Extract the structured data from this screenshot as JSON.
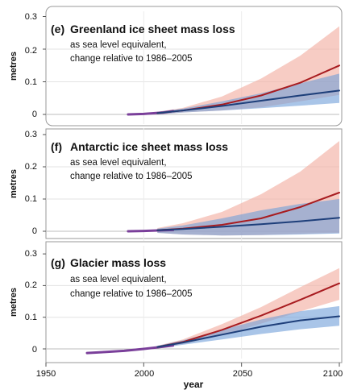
{
  "chart_data": [
    {
      "type": "line",
      "letter": "(e)",
      "title": "Greenland ice sheet mass loss",
      "subtitle_line1": "as sea level equivalent,",
      "subtitle_line2": "change relative to 1986–2005",
      "ylabel": "metres",
      "ylim": [
        -0.02,
        0.3
      ],
      "yticks": [
        "0.3",
        "0.2",
        "0.1",
        "0"
      ],
      "xlim": [
        1950,
        2100
      ],
      "grid": true,
      "series": [
        {
          "key": "historical",
          "color": "#7a3f9a",
          "x": [
            1992,
            2000,
            2010,
            2015
          ],
          "y": [
            0.0,
            0.0015,
            0.006,
            0.01
          ]
        },
        {
          "key": "high",
          "color": "#a81c20",
          "band_color": "#f3b1a4",
          "x": [
            2007,
            2020,
            2040,
            2060,
            2080,
            2100
          ],
          "y": [
            0.004,
            0.012,
            0.03,
            0.058,
            0.097,
            0.15
          ],
          "lower": [
            0.0,
            0.006,
            0.012,
            0.022,
            0.04,
            0.06
          ],
          "upper": [
            0.008,
            0.02,
            0.055,
            0.11,
            0.18,
            0.27
          ]
        },
        {
          "key": "low",
          "color": "#1e3f7a",
          "band_color": "#6f9fd8",
          "x": [
            2007,
            2020,
            2040,
            2060,
            2080,
            2100
          ],
          "y": [
            0.004,
            0.012,
            0.026,
            0.042,
            0.058,
            0.073
          ],
          "lower": [
            0.0,
            0.006,
            0.012,
            0.019,
            0.027,
            0.035
          ],
          "upper": [
            0.008,
            0.018,
            0.04,
            0.065,
            0.095,
            0.125
          ]
        }
      ]
    },
    {
      "type": "line",
      "letter": "(f)",
      "title": "Antarctic ice sheet mass loss",
      "subtitle_line1": "as sea level equivalent,",
      "subtitle_line2": "change relative to 1986–2005",
      "ylabel": "metres",
      "ylim": [
        -0.02,
        0.3
      ],
      "yticks": [
        "0.3",
        "0.2",
        "0.1",
        "0"
      ],
      "xlim": [
        1950,
        2100
      ],
      "grid": true,
      "series": [
        {
          "key": "historical",
          "color": "#7a3f9a",
          "x": [
            1992,
            2000,
            2010,
            2015
          ],
          "y": [
            0.0,
            0.001,
            0.003,
            0.004
          ]
        },
        {
          "key": "high",
          "color": "#a81c20",
          "band_color": "#f3b1a4",
          "x": [
            2007,
            2020,
            2040,
            2060,
            2080,
            2100
          ],
          "y": [
            0.003,
            0.008,
            0.02,
            0.04,
            0.075,
            0.12
          ],
          "lower": [
            -0.005,
            -0.01,
            -0.013,
            -0.012,
            -0.008,
            -0.005
          ],
          "upper": [
            0.01,
            0.025,
            0.06,
            0.115,
            0.185,
            0.28
          ]
        },
        {
          "key": "low",
          "color": "#1e3f7a",
          "band_color": "#6f9fd8",
          "x": [
            2007,
            2020,
            2040,
            2060,
            2080,
            2100
          ],
          "y": [
            0.003,
            0.007,
            0.014,
            0.022,
            0.031,
            0.042
          ],
          "lower": [
            -0.005,
            -0.01,
            -0.013,
            -0.012,
            -0.01,
            -0.007
          ],
          "upper": [
            0.008,
            0.018,
            0.04,
            0.065,
            0.085,
            0.1
          ]
        }
      ]
    },
    {
      "type": "line",
      "letter": "(g)",
      "title": "Glacier mass loss",
      "subtitle_line1": "as sea level equivalent,",
      "subtitle_line2": "change relative to 1986–2005",
      "ylabel": "metres",
      "ylim": [
        -0.02,
        0.3
      ],
      "yticks": [
        "0.3",
        "0.2",
        "0.1",
        "0"
      ],
      "xlim": [
        1950,
        2100
      ],
      "xticks": [
        "1950",
        "2000",
        "2050",
        "2100"
      ],
      "xlabel": "year",
      "grid": true,
      "series": [
        {
          "key": "historical",
          "color": "#7a3f9a",
          "x": [
            1971,
            1980,
            1990,
            2000,
            2010,
            2015
          ],
          "y": [
            -0.013,
            -0.01,
            -0.006,
            0.0,
            0.007,
            0.011
          ]
        },
        {
          "key": "high",
          "color": "#a81c20",
          "band_color": "#f3b1a4",
          "x": [
            2007,
            2020,
            2040,
            2060,
            2080,
            2100
          ],
          "y": [
            0.006,
            0.022,
            0.06,
            0.105,
            0.155,
            0.207
          ],
          "lower": [
            0.002,
            0.015,
            0.043,
            0.08,
            0.118,
            0.155
          ],
          "upper": [
            0.01,
            0.03,
            0.078,
            0.132,
            0.195,
            0.255
          ]
        },
        {
          "key": "low",
          "color": "#1e3f7a",
          "band_color": "#6f9fd8",
          "x": [
            2007,
            2020,
            2040,
            2060,
            2080,
            2100
          ],
          "y": [
            0.006,
            0.02,
            0.045,
            0.07,
            0.09,
            0.103
          ],
          "lower": [
            0.002,
            0.013,
            0.03,
            0.047,
            0.062,
            0.073
          ],
          "upper": [
            0.01,
            0.027,
            0.06,
            0.093,
            0.119,
            0.135
          ]
        }
      ]
    }
  ]
}
